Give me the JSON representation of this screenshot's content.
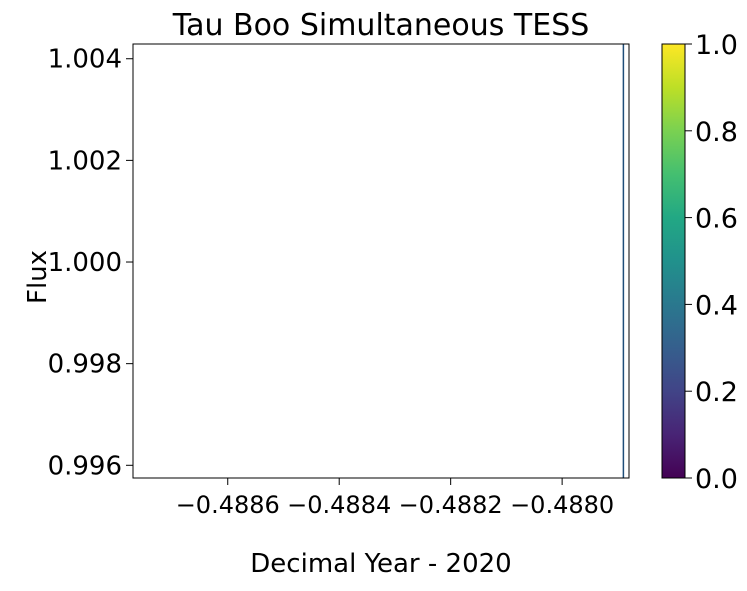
{
  "chart_data": {
    "type": "scatter",
    "title": "Tau Boo Simultaneous TESS",
    "xlabel": "Decimal Year - 2020",
    "ylabel": "Flux",
    "x_ticks": [
      -0.4886,
      -0.4884,
      -0.4882,
      -0.488
    ],
    "x_tick_labels": [
      "−0.4886",
      "−0.4884",
      "−0.4882",
      "−0.4880"
    ],
    "xlim": [
      -0.48877,
      -0.48788
    ],
    "y_ticks": [
      0.996,
      0.998,
      1.0,
      1.002,
      1.004
    ],
    "y_tick_labels": [
      "0.996",
      "0.998",
      "1.000",
      "1.002",
      "1.004"
    ],
    "ylim": [
      0.99575,
      1.00429
    ],
    "series": [
      {
        "x": [
          -0.48789,
          -0.48789
        ],
        "y": [
          0.99575,
          1.00429
        ]
      }
    ],
    "grid": false,
    "colorbar": {
      "colormap": "viridis",
      "range": [
        0.0,
        1.0
      ],
      "ticks": [
        0.0,
        0.2,
        0.4,
        0.6,
        0.8,
        1.0
      ],
      "tick_labels": [
        "0.0",
        "0.2",
        "0.4",
        "0.6",
        "0.8",
        "1.0"
      ]
    }
  }
}
